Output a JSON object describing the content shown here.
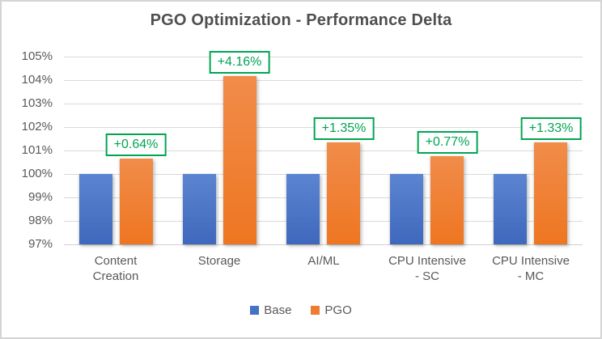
{
  "chart_data": {
    "type": "bar",
    "title": "PGO Optimization - Performance Delta",
    "categories": [
      "Content\nCreation",
      "Storage",
      "AI/ML",
      "CPU Intensive\n- SC",
      "CPU Intensive\n- MC"
    ],
    "series": [
      {
        "name": "Base",
        "color": "#4472C4",
        "values": [
          100,
          100,
          100,
          100,
          100
        ]
      },
      {
        "name": "PGO",
        "color": "#ED7D31",
        "values": [
          100.64,
          104.16,
          101.35,
          100.77,
          101.33
        ]
      }
    ],
    "data_labels": [
      "+0.64%",
      "+4.16%",
      "+1.35%",
      "+0.77%",
      "+1.33%"
    ],
    "data_label_color": "#00A551",
    "ylabel": "",
    "xlabel": "",
    "ylim": [
      97,
      105
    ],
    "y_tick_step": 1,
    "y_tick_labels": [
      "97%",
      "98%",
      "99%",
      "100%",
      "101%",
      "102%",
      "103%",
      "104%",
      "105%"
    ],
    "grid": true,
    "gridline_color": "#D9D9D9",
    "legend_position": "bottom"
  }
}
